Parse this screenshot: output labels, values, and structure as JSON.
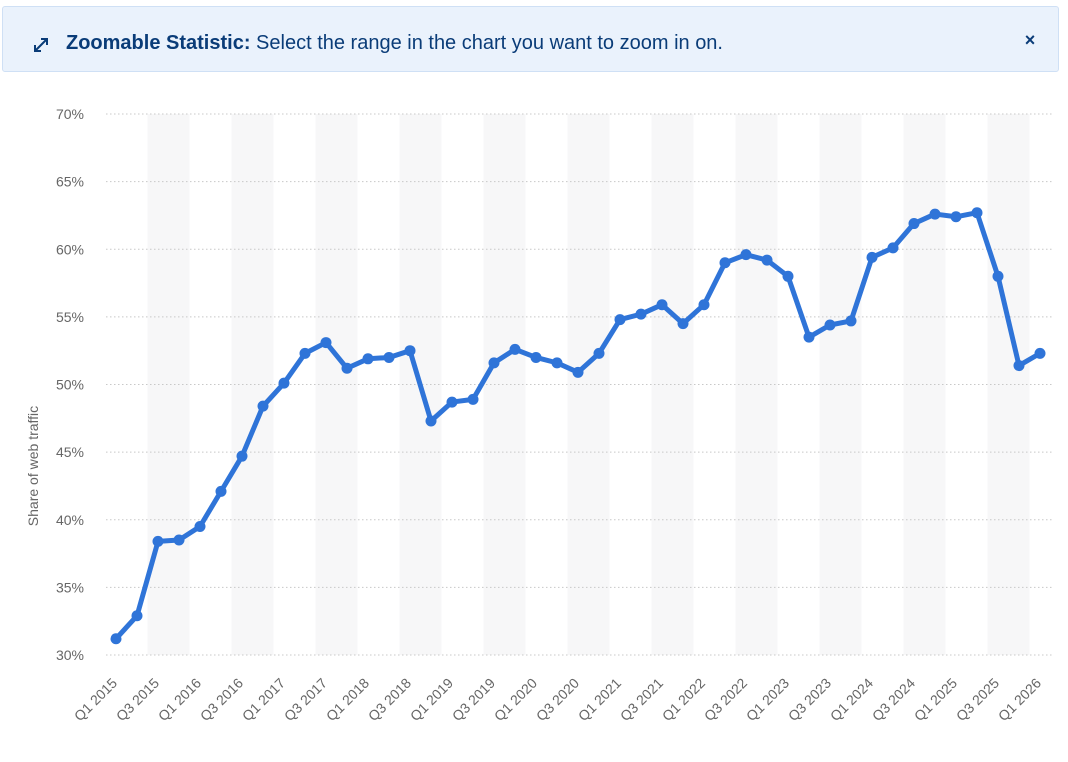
{
  "banner": {
    "title": "Zoomable Statistic:",
    "text": "Select the range in the chart you want to zoom in on.",
    "expand_icon": "expand-icon",
    "close_icon": "close-icon",
    "close_label": "×"
  },
  "colors": {
    "line": "#2f74d8",
    "banner_bg": "#eaf2fc",
    "banner_text": "#0a3c78",
    "band": "#f7f7f8"
  },
  "chart_data": {
    "type": "line",
    "title": "",
    "xlabel": "",
    "ylabel": "Share of web traffic",
    "ylim": [
      30,
      70
    ],
    "yticks": [
      30,
      35,
      40,
      45,
      50,
      55,
      60,
      65,
      70
    ],
    "ytick_suffix": "%",
    "grid": true,
    "tick_labels": [
      "Q1 2015",
      "Q3 2015",
      "Q1 2016",
      "Q3 2016",
      "Q1 2017",
      "Q3 2017",
      "Q1 2018",
      "Q3 2018",
      "Q1 2019",
      "Q3 2019",
      "Q1 2020",
      "Q3 2020",
      "Q1 2021",
      "Q3 2021",
      "Q1 2022",
      "Q3 2022",
      "Q1 2023",
      "Q3 2023",
      "Q1 2024",
      "Q3 2024",
      "Q1 2025",
      "Q3 2025",
      "Q1 2026"
    ],
    "series": [
      {
        "values": [
          31.2,
          32.9,
          38.4,
          38.5,
          39.5,
          42.1,
          44.7,
          48.4,
          50.1,
          52.3,
          53.1,
          51.2,
          51.9,
          52.0,
          52.5,
          47.3,
          48.7,
          48.9,
          51.6,
          52.6,
          52.0,
          51.6,
          50.9,
          52.3,
          54.8,
          55.2,
          55.9,
          54.5,
          55.9,
          59.0,
          59.6,
          59.2,
          58.0,
          53.5,
          54.4,
          54.7,
          59.4,
          60.1,
          61.9,
          62.6,
          62.4,
          62.7,
          58.0,
          51.4,
          52.3
        ]
      }
    ]
  }
}
